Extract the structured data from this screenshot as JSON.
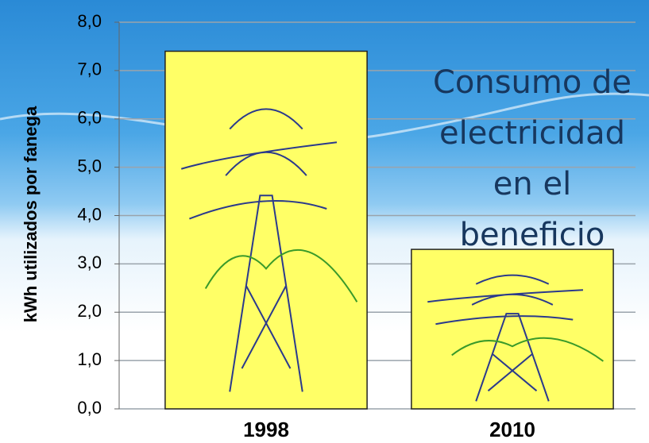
{
  "chart_data": {
    "type": "bar",
    "title": "Consumo de electricidad en el beneficio",
    "y_label": "kWh utilizados por fanega",
    "categories": [
      "1998",
      "2010"
    ],
    "values": [
      7.4,
      3.3
    ],
    "color": "#ffff66",
    "ylim": [
      0,
      8
    ],
    "yticks": [
      {
        "value": 0,
        "label": "0,0"
      },
      {
        "value": 1,
        "label": "1,0"
      },
      {
        "value": 2,
        "label": "2,0"
      },
      {
        "value": 3,
        "label": "3,0"
      },
      {
        "value": 4,
        "label": "4,0"
      },
      {
        "value": 5,
        "label": "5,0"
      },
      {
        "value": 6,
        "label": "6,0"
      },
      {
        "value": 7,
        "label": "7,0"
      },
      {
        "value": 8,
        "label": "8,0"
      }
    ],
    "grid": true
  }
}
